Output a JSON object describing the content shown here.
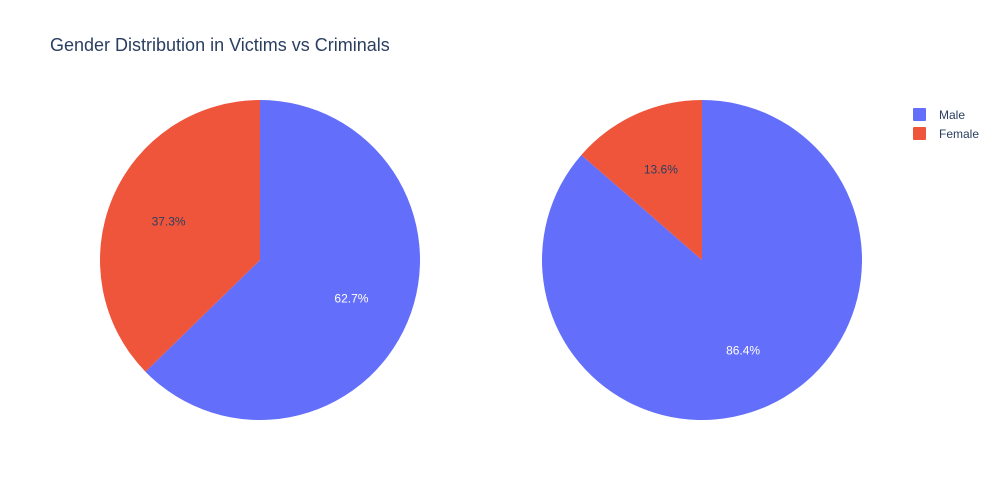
{
  "chart_data": {
    "type": "pie",
    "title": "Gender Distribution in Victims vs Criminals",
    "legend": {
      "placement": "top-right",
      "entries": [
        {
          "name": "Male",
          "color": "#636efa"
        },
        {
          "name": "Female",
          "color": "#ef553b"
        }
      ]
    },
    "pies": [
      {
        "slices": [
          {
            "label": "Male",
            "value": 62.7,
            "text": "62.7%",
            "color": "#636efa",
            "text_color": "#ffffff"
          },
          {
            "label": "Female",
            "value": 37.3,
            "text": "37.3%",
            "color": "#ef553b",
            "text_color": "#2a3f5f"
          }
        ]
      },
      {
        "slices": [
          {
            "label": "Male",
            "value": 86.4,
            "text": "86.4%",
            "color": "#636efa",
            "text_color": "#ffffff"
          },
          {
            "label": "Female",
            "value": 13.6,
            "text": "13.6%",
            "color": "#ef553b",
            "text_color": "#2a3f5f"
          }
        ]
      }
    ]
  }
}
